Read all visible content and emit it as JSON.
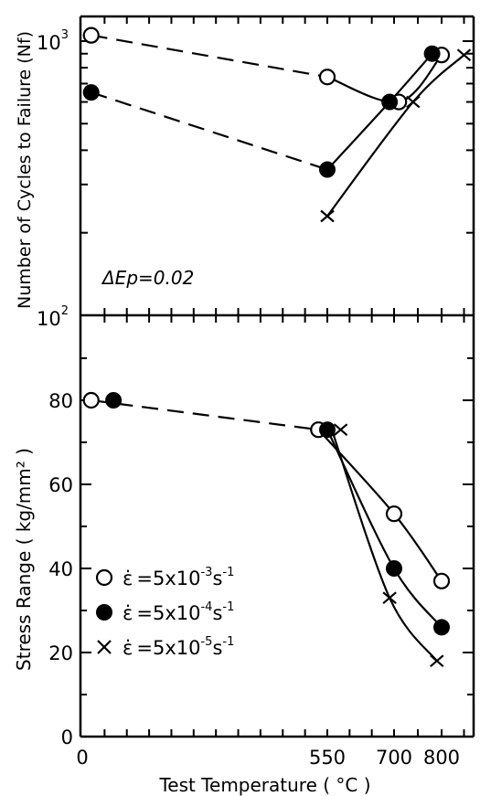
{
  "chart_data": [
    {
      "type": "scatter",
      "panel": "top",
      "ylabel": "Number of Cycles to Failure (Nf)",
      "yscale": "log",
      "ylim": [
        100,
        1600
      ],
      "y_ticks": [
        {
          "base": "10",
          "exp": "3",
          "value": 1000
        },
        {
          "base": "10",
          "exp": "2",
          "value": 100
        }
      ],
      "annotation": "ΔΕp=0.02",
      "series": [
        {
          "marker": "open-circle",
          "points": [
            [
              20,
              1050
            ],
            [
              550,
              740
            ],
            [
              710,
              600
            ],
            [
              800,
              890
            ]
          ]
        },
        {
          "marker": "filled-circle",
          "points": [
            [
              20,
              650
            ],
            [
              550,
              340
            ],
            [
              690,
              600
            ],
            [
              780,
              900
            ]
          ]
        },
        {
          "marker": "cross",
          "points": [
            [
              550,
              230
            ],
            [
              740,
              600
            ],
            [
              850,
              890
            ]
          ]
        }
      ]
    },
    {
      "type": "scatter",
      "panel": "bottom",
      "ylabel": "Stress Range ( kg/mm² )",
      "ylim": [
        0,
        95
      ],
      "yticks": [
        "0",
        "20",
        "40",
        "60",
        "80"
      ],
      "xlabel": "Test Temperature ( °C )",
      "xticks": [
        "0",
        "550",
        "700",
        "800"
      ],
      "legend": {
        "placement": "left",
        "entries": [
          {
            "marker": "open-circle",
            "symbol": "ε̇",
            "text": "=5x10",
            "exp": "-3",
            "unit": "s",
            "unit_exp": "-1"
          },
          {
            "marker": "filled-circle",
            "symbol": "ε̇",
            "text": "=5x10",
            "exp": "-4",
            "unit": "s",
            "unit_exp": "-1"
          },
          {
            "marker": "cross",
            "symbol": "ε̇",
            "text": "=5x10",
            "exp": "-5",
            "unit": "s",
            "unit_exp": "-1"
          }
        ]
      },
      "series": [
        {
          "marker": "open-circle",
          "points": [
            [
              20,
              80
            ],
            [
              530,
              73
            ],
            [
              700,
              53
            ],
            [
              800,
              37
            ]
          ]
        },
        {
          "marker": "filled-circle",
          "points": [
            [
              70,
              80
            ],
            [
              550,
              73
            ],
            [
              700,
              40
            ],
            [
              800,
              26
            ]
          ]
        },
        {
          "marker": "cross",
          "points": [
            [
              580,
              73
            ],
            [
              690,
              33
            ],
            [
              790,
              18
            ]
          ]
        }
      ]
    }
  ]
}
